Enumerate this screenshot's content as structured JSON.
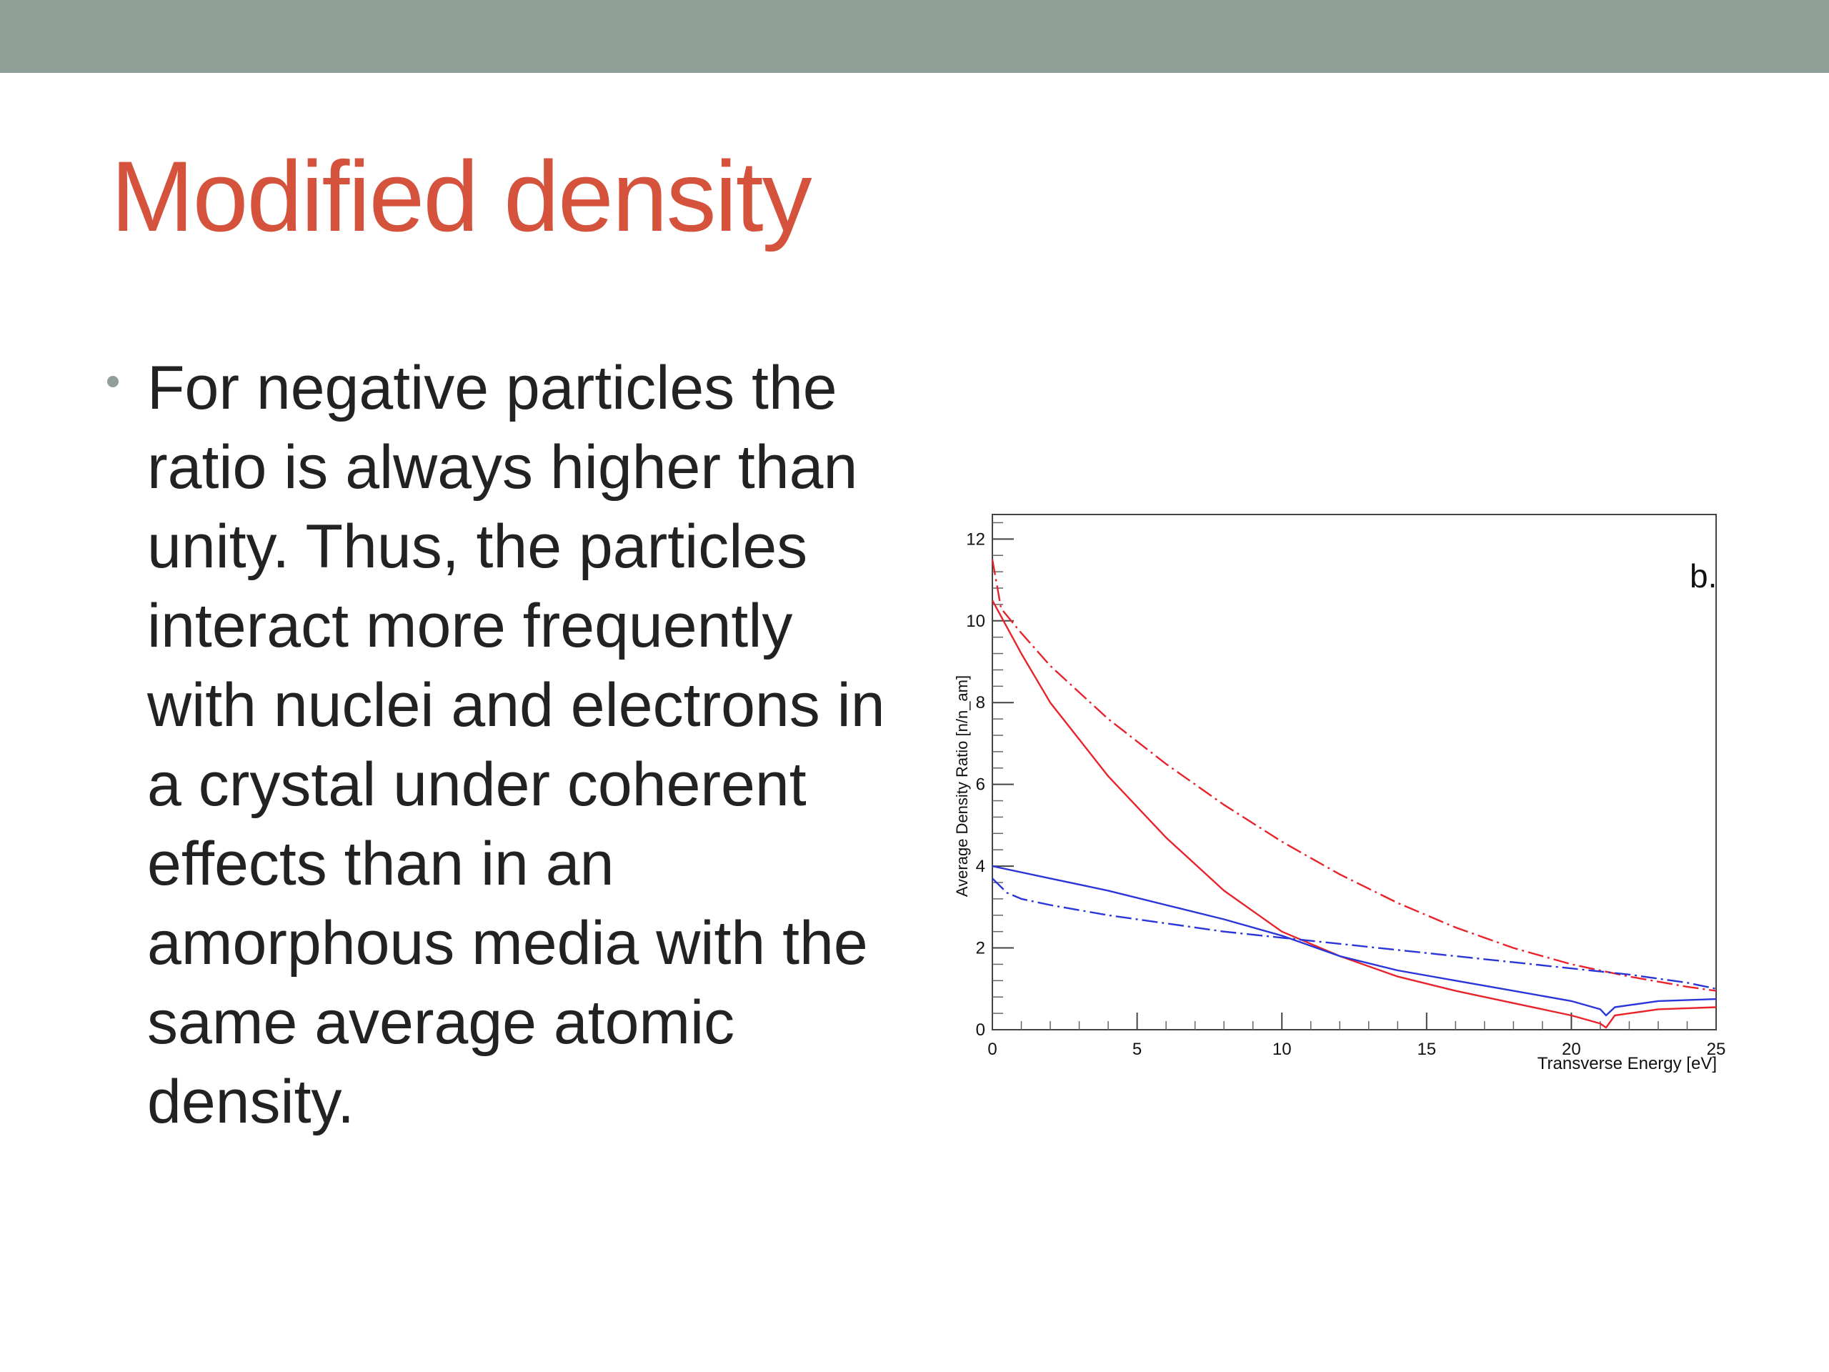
{
  "slide": {
    "title": "Modified density",
    "bullet": "For negative particles the ratio is always higher than unity. Thus, the particles interact more frequently with nuclei and electrons in a crystal under coherent effects than in an amorphous media with the same average atomic density."
  },
  "colors": {
    "top_band": "#909f98",
    "title": "#d5533c",
    "text": "#222222",
    "series_red": "#e8232b",
    "series_blue": "#2a35d8"
  },
  "chart_data": {
    "type": "line",
    "panel_label": "b.",
    "xlabel": "Transverse Energy [eV]",
    "ylabel": "Average Density Ratio [n/n_am]",
    "xlim": [
      0,
      25
    ],
    "ylim": [
      0,
      12.6
    ],
    "x_ticks": [
      "0",
      "5",
      "10",
      "15",
      "20",
      "25"
    ],
    "y_ticks": [
      "0",
      "2",
      "4",
      "6",
      "8",
      "10",
      "12"
    ],
    "grid": false,
    "series": [
      {
        "color": "#e8232b",
        "style": "solid",
        "x": [
          0,
          1,
          2,
          4,
          6,
          8,
          10,
          12,
          14,
          16,
          18,
          20,
          21,
          21.2,
          21.5,
          23,
          25
        ],
        "y": [
          10.5,
          9.2,
          8.0,
          6.2,
          4.7,
          3.4,
          2.4,
          1.8,
          1.3,
          0.95,
          0.65,
          0.35,
          0.15,
          0.05,
          0.35,
          0.5,
          0.55
        ]
      },
      {
        "color": "#e8232b",
        "style": "dashed",
        "x": [
          0,
          0.3,
          1,
          2,
          4,
          6,
          8,
          10,
          12,
          14,
          16,
          18,
          20,
          22,
          24,
          25
        ],
        "y": [
          11.5,
          10.3,
          9.7,
          8.9,
          7.6,
          6.5,
          5.5,
          4.6,
          3.8,
          3.1,
          2.5,
          2.0,
          1.6,
          1.3,
          1.05,
          0.95
        ]
      },
      {
        "color": "#2a35d8",
        "style": "solid",
        "x": [
          0,
          2,
          4,
          6,
          8,
          10,
          12,
          14,
          16,
          18,
          20,
          21,
          21.2,
          21.5,
          23,
          25
        ],
        "y": [
          4.0,
          3.7,
          3.4,
          3.05,
          2.7,
          2.3,
          1.8,
          1.45,
          1.2,
          0.95,
          0.7,
          0.5,
          0.35,
          0.55,
          0.7,
          0.75
        ]
      },
      {
        "color": "#2a35d8",
        "style": "dashed",
        "x": [
          0,
          0.5,
          1,
          2,
          4,
          6,
          8,
          10,
          12,
          14,
          16,
          18,
          20,
          22,
          24,
          25
        ],
        "y": [
          3.7,
          3.35,
          3.2,
          3.05,
          2.8,
          2.6,
          2.4,
          2.25,
          2.1,
          1.95,
          1.8,
          1.65,
          1.5,
          1.35,
          1.15,
          1.0
        ]
      }
    ]
  }
}
